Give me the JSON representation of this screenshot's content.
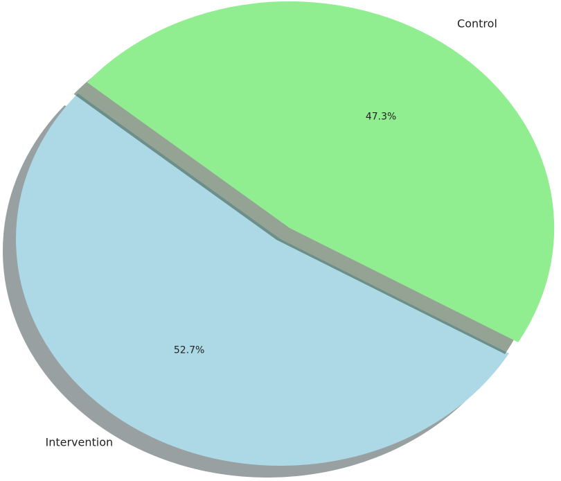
{
  "chart_data": {
    "type": "pie",
    "categories": [
      "Intervention",
      "Control"
    ],
    "values": [
      52.7,
      47.3
    ],
    "value_labels": [
      "52.7%",
      "47.3%"
    ],
    "colors": [
      "#add8e6",
      "#90ee90"
    ]
  }
}
